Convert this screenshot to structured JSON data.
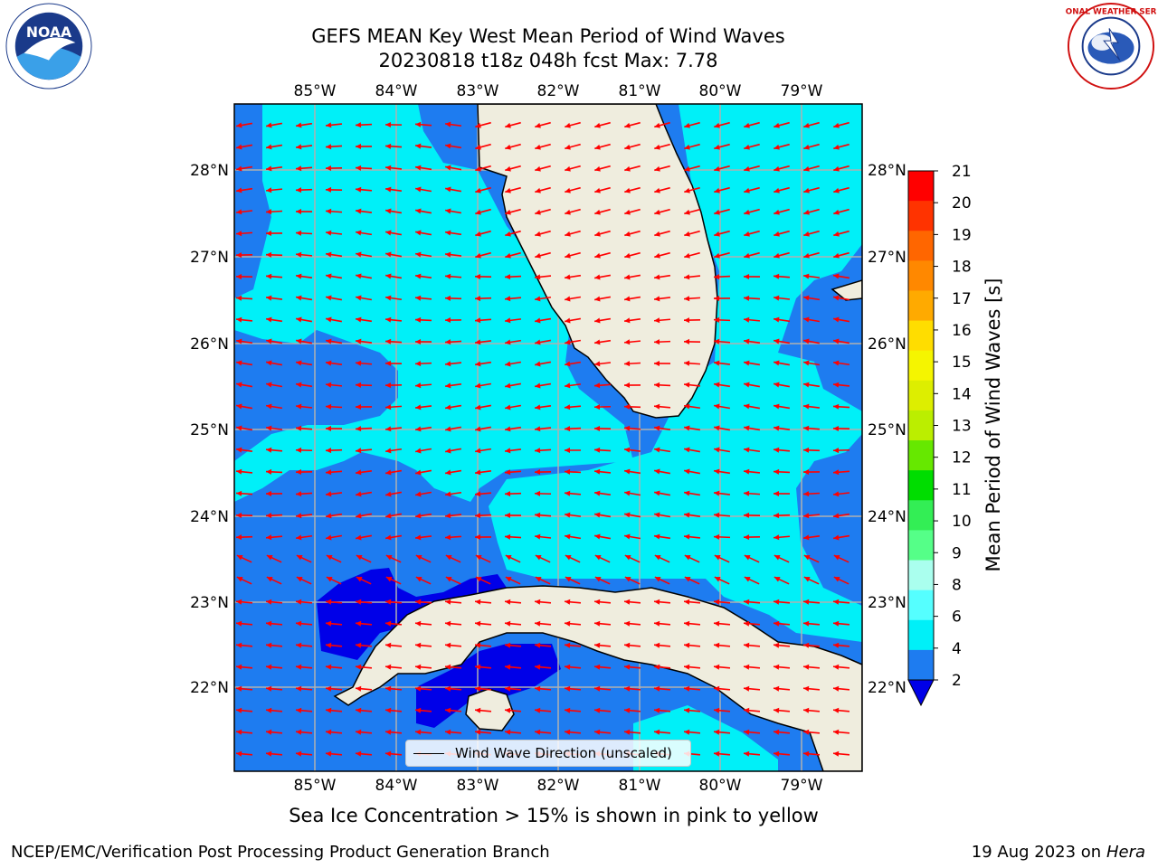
{
  "header": {
    "title_line1": "GEFS MEAN Key West Mean Period of Wind Waves",
    "title_line2": "20230818 t18z 048h fcst   Max: 7.78"
  },
  "logos": {
    "left": "NOAA",
    "right": "NATIONAL WEATHER SERVICE"
  },
  "map": {
    "lon_labels": [
      "85°W",
      "84°W",
      "83°W",
      "82°W",
      "81°W",
      "80°W",
      "79°W"
    ],
    "lat_labels": [
      "28°N",
      "27°N",
      "26°N",
      "25°N",
      "24°N",
      "23°N",
      "22°N"
    ],
    "legend_label": "Wind Wave Direction (unscaled)",
    "colors": {
      "land": "#efedde",
      "band_2_4": "#1e7cf0",
      "band_4_6": "#00f0f8",
      "band_below_2": "#0000e8",
      "arrows": "#ff0000",
      "grid": "#b0b0b0"
    }
  },
  "colorbar": {
    "label": "Mean Period of Wind Waves [s]",
    "ticks": [
      "21",
      "20",
      "19",
      "18",
      "17",
      "16",
      "15",
      "14",
      "13",
      "12",
      "11",
      "10",
      "9",
      "8",
      "6",
      "4",
      "2"
    ],
    "bands": [
      {
        "range": "20-21",
        "color": "#ff0000"
      },
      {
        "range": "19-20",
        "color": "#ff3300"
      },
      {
        "range": "18-19",
        "color": "#ff6600"
      },
      {
        "range": "17-18",
        "color": "#ff8800"
      },
      {
        "range": "16-17",
        "color": "#ffaa00"
      },
      {
        "range": "15-16",
        "color": "#ffdd00"
      },
      {
        "range": "14-15",
        "color": "#f5f500"
      },
      {
        "range": "13-14",
        "color": "#ddee00"
      },
      {
        "range": "12-13",
        "color": "#bbee00"
      },
      {
        "range": "11-12",
        "color": "#66e800"
      },
      {
        "range": "10-11",
        "color": "#00dd00"
      },
      {
        "range": "9-10",
        "color": "#33ee55"
      },
      {
        "range": "8-9",
        "color": "#55ff88"
      },
      {
        "range": "6-8",
        "color": "#aaffee"
      },
      {
        "range": "4-6",
        "color": "#55ffff"
      },
      {
        "range": "4",
        "color": "#00f0f8"
      },
      {
        "range": "2-4",
        "color": "#1e7cf0"
      }
    ],
    "extend_color": "#0000e8"
  },
  "footer": {
    "note": "Sea Ice Concentration > 15% is shown in pink to yellow",
    "branch": "NCEP/EMC/Verification Post Processing Product Generation Branch",
    "date": "19 Aug 2023 on",
    "machine": "Hera"
  }
}
